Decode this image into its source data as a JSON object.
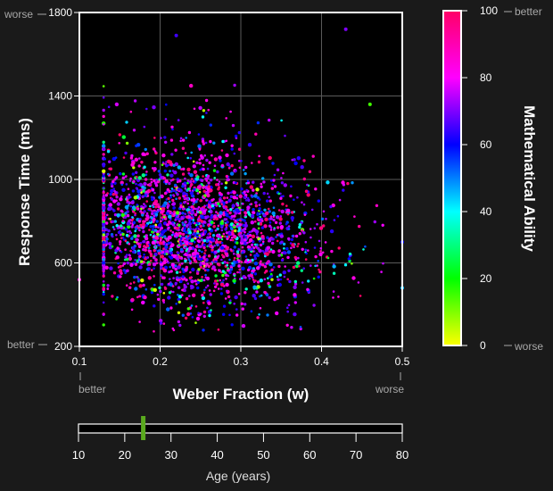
{
  "chart_data": {
    "type": "scatter",
    "title": "",
    "xlabel": "Weber Fraction (w)",
    "ylabel": "Response Time (ms)",
    "xlim": [
      0.1,
      0.5
    ],
    "ylim": [
      200,
      1800
    ],
    "x_ticks": [
      "0.1",
      "0.2",
      "0.3",
      "0.4",
      "0.5"
    ],
    "y_ticks": [
      "200",
      "600",
      "1000",
      "1400",
      "1800"
    ],
    "x_notes": {
      "low": "better",
      "high": "worse"
    },
    "y_notes": {
      "low": "better",
      "high": "worse"
    },
    "grid": true,
    "color_dimension": {
      "label": "Mathematical Ability",
      "range": [
        0,
        100
      ],
      "ticks": [
        "0",
        "20",
        "40",
        "60",
        "80",
        "100"
      ],
      "notes": {
        "low": "worse",
        "high": "better"
      },
      "colormap": [
        "#ffff00",
        "#00ff00",
        "#00ffff",
        "#0000ff",
        "#ff00ff",
        "#ff0066"
      ]
    },
    "point_summary": {
      "count_approx": 3000,
      "center": {
        "x": 0.24,
        "y": 760
      },
      "x_spread_sd": 0.07,
      "y_spread_sd": 175,
      "typical_ability": 75
    },
    "notable_points": [
      {
        "x": 0.5,
        "y": 700,
        "ability": 60
      },
      {
        "x": 0.5,
        "y": 480,
        "ability": 45
      },
      {
        "x": 0.43,
        "y": 1720,
        "ability": 70
      },
      {
        "x": 0.46,
        "y": 1360,
        "ability": 15
      },
      {
        "x": 0.1,
        "y": 520,
        "ability": 85
      },
      {
        "x": 0.22,
        "y": 1690,
        "ability": 65
      }
    ]
  },
  "age_slider": {
    "label": "Age (years)",
    "ticks": [
      "10",
      "20",
      "30",
      "40",
      "50",
      "60",
      "70",
      "80"
    ],
    "range": [
      10,
      80
    ],
    "value": 24,
    "thumb_color": "#5aaa1e"
  }
}
